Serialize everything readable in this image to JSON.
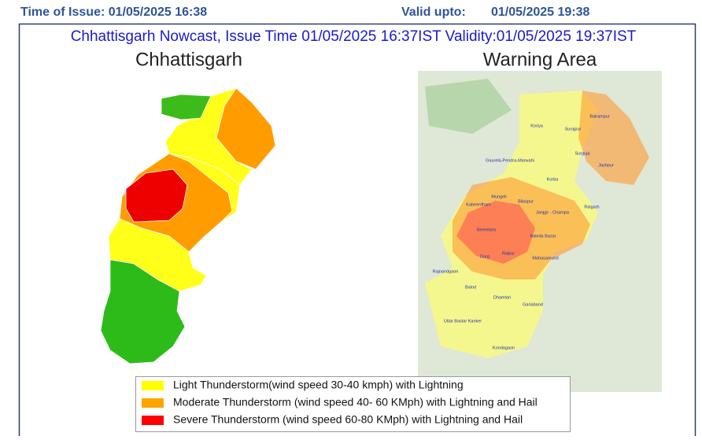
{
  "header": {
    "issue": "Time of Issue: 01/05/2025 16:38",
    "valid_label": "Valid upto:",
    "valid_time": "01/05/2025 19:38"
  },
  "title": "Chhattisgarh Nowcast, Issue Time 01/05/2025 16:37IST  Validity:01/05/2025 19:37IST",
  "left_map": {
    "title": "Chhattisgarh"
  },
  "right_map": {
    "title": "Warning Area",
    "districts": [
      "Koriya",
      "Surajpur",
      "Balrampur",
      "Surguja",
      "Jashpur",
      "Gaurela-Pendra-Marwahi",
      "Korba",
      "Raigarh",
      "Mungeli",
      "Bilaspur",
      "Kabeerdham",
      "Janjgir - Champa",
      "Bemetara",
      "Baloda Bazar",
      "Durg",
      "Raipur",
      "Mahasamund",
      "Rajnandgaon",
      "Balod",
      "Dhamtari",
      "Gariaband",
      "Uttar Bastar Kanker",
      "Kondagaon"
    ]
  },
  "legend": [
    {
      "color": "#ffff00",
      "label": "Light Thunderstorm(wind speed 30-40 kmph) with Lightning"
    },
    {
      "color": "#ffa500",
      "label": "Moderate Thunderstorm (wind speed 40- 60 KMph) with Lightning and Hail"
    },
    {
      "color": "#ff0000",
      "label": "Severe Thunderstorm (wind speed 60-80 KMph) with Lightning and Hail"
    }
  ]
}
